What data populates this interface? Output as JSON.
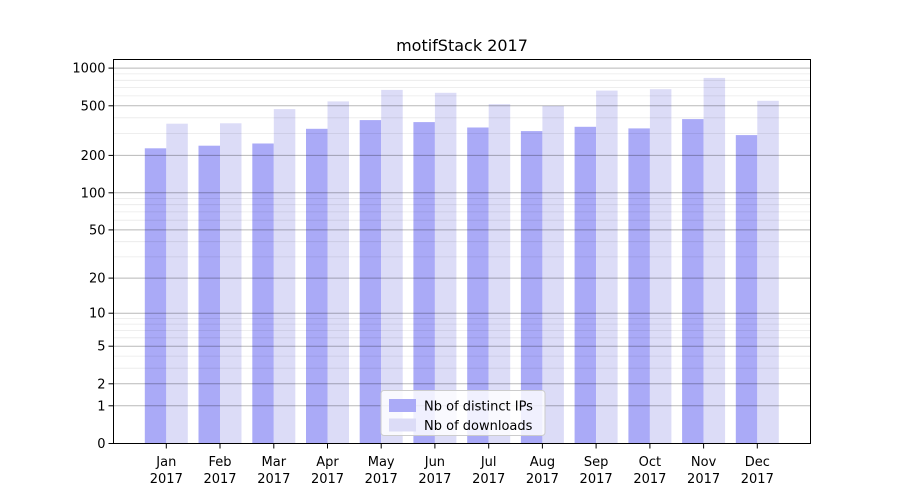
{
  "title": "motifStack 2017",
  "chart_data": {
    "type": "bar",
    "title": "motifStack 2017",
    "categories": [
      "Jan 2017",
      "Feb 2017",
      "Mar 2017",
      "Apr 2017",
      "May 2017",
      "Jun 2017",
      "Jul 2017",
      "Aug 2017",
      "Sep 2017",
      "Oct 2017",
      "Nov 2017",
      "Dec 2017"
    ],
    "series": [
      {
        "key": "ips",
        "name": "Nb of distinct IPs",
        "color": "#aaaaf7",
        "values": [
          228,
          239,
          249,
          327,
          384,
          370,
          335,
          313,
          339,
          329,
          391,
          291
        ]
      },
      {
        "key": "downloads",
        "name": "Nb of downloads",
        "color": "#dcdcf7",
        "values": [
          359,
          362,
          470,
          542,
          670,
          635,
          515,
          499,
          661,
          679,
          836,
          548
        ]
      }
    ],
    "xlabel": "",
    "ylabel": "",
    "yscale": "log1p",
    "ylim": [
      0,
      1170
    ],
    "yticks": [
      0,
      1,
      2,
      5,
      10,
      20,
      50,
      100,
      200,
      500,
      1000
    ],
    "yticks_minor": [
      3,
      4,
      6,
      7,
      8,
      9,
      30,
      40,
      60,
      70,
      80,
      90,
      300,
      400,
      600,
      700,
      800,
      900
    ],
    "grid": "on",
    "legend": {
      "position": "lower center",
      "labels": [
        "Nb of distinct IPs",
        "Nb of downloads"
      ]
    }
  }
}
